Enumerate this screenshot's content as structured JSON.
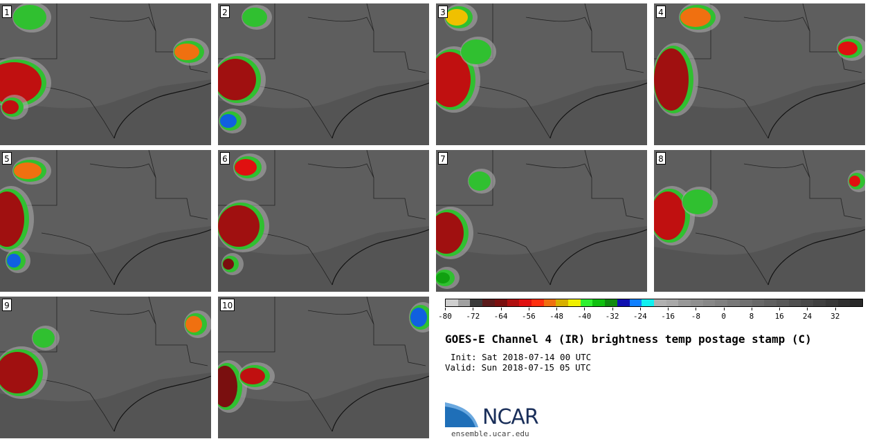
{
  "panels": [
    {
      "label": "1"
    },
    {
      "label": "2"
    },
    {
      "label": "3"
    },
    {
      "label": "4"
    },
    {
      "label": "5"
    },
    {
      "label": "6"
    },
    {
      "label": "7"
    },
    {
      "label": "8"
    },
    {
      "label": "9"
    },
    {
      "label": "10"
    }
  ],
  "colorbar": {
    "colors": [
      "#cfcfcf",
      "#a0a0a0",
      "#3a3a3a",
      "#5a1a1a",
      "#7a0f0f",
      "#b01010",
      "#e01010",
      "#ff3010",
      "#f07010",
      "#d8b000",
      "#f0f000",
      "#30f030",
      "#10c010",
      "#108a10",
      "#1010b0",
      "#1080ff",
      "#10f0f0",
      "#b0b0b0",
      "#a8a8a8",
      "#989898",
      "#909090",
      "#888888",
      "#808080",
      "#787878",
      "#707070",
      "#686868",
      "#606060",
      "#585858",
      "#505050",
      "#484848",
      "#404040",
      "#383838",
      "#303030",
      "#282828"
    ],
    "ticks": [
      "-80",
      "-72",
      "-64",
      "-56",
      "-48",
      "-40",
      "-32",
      "-24",
      "-16",
      "-8",
      "0",
      "8",
      "16",
      "24",
      "32"
    ]
  },
  "title": "GOES-E Channel 4 (IR) brightness temp postage stamp (C)",
  "init": "Init: Sat 2018-07-14 00 UTC",
  "valid": "Valid: Sun 2018-07-15 05 UTC",
  "logo": {
    "text": "NCAR",
    "site": "ensemble.ucar.edu"
  }
}
